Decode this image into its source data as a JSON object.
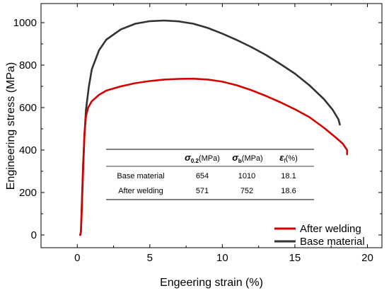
{
  "chart_data": {
    "type": "line",
    "xlabel": "Engeering strain (%)",
    "ylabel": "Engineering stress (MPa)",
    "xlim": [
      -2.5,
      21
    ],
    "ylim": [
      -60,
      1090
    ],
    "xticks": [
      0,
      5,
      10,
      15,
      20
    ],
    "yticks": [
      0,
      200,
      400,
      600,
      800,
      1000
    ],
    "xtick_labels": [
      "0",
      "5",
      "10",
      "15",
      "20"
    ],
    "ytick_labels": [
      "0",
      "200",
      "400",
      "600",
      "800",
      "1000"
    ],
    "legend_position": "bottom-right",
    "series": [
      {
        "name": "After welding",
        "color": "#d40000",
        "points": [
          [
            0.2,
            0
          ],
          [
            0.25,
            15
          ],
          [
            0.3,
            100
          ],
          [
            0.4,
            300
          ],
          [
            0.5,
            480
          ],
          [
            0.6,
            560
          ],
          [
            0.75,
            600
          ],
          [
            1,
            630
          ],
          [
            1.5,
            660
          ],
          [
            2,
            680
          ],
          [
            3,
            700
          ],
          [
            4,
            715
          ],
          [
            5,
            725
          ],
          [
            6,
            732
          ],
          [
            7,
            735
          ],
          [
            8,
            736
          ],
          [
            9,
            732
          ],
          [
            10,
            722
          ],
          [
            11,
            705
          ],
          [
            12,
            682
          ],
          [
            13,
            655
          ],
          [
            14,
            625
          ],
          [
            15,
            592
          ],
          [
            16,
            555
          ],
          [
            17,
            505
          ],
          [
            17.8,
            460
          ],
          [
            18.3,
            430
          ],
          [
            18.6,
            400
          ],
          [
            18.6,
            380
          ]
        ]
      },
      {
        "name": "Base material",
        "color": "#333333",
        "points": [
          [
            0.2,
            0
          ],
          [
            0.25,
            15
          ],
          [
            0.3,
            120
          ],
          [
            0.4,
            330
          ],
          [
            0.5,
            480
          ],
          [
            0.6,
            590
          ],
          [
            0.8,
            700
          ],
          [
            1,
            780
          ],
          [
            1.5,
            870
          ],
          [
            2,
            920
          ],
          [
            3,
            968
          ],
          [
            4,
            995
          ],
          [
            5,
            1007
          ],
          [
            6,
            1010
          ],
          [
            7,
            1006
          ],
          [
            8,
            995
          ],
          [
            9,
            975
          ],
          [
            10,
            948
          ],
          [
            11,
            918
          ],
          [
            12,
            885
          ],
          [
            13,
            848
          ],
          [
            14,
            805
          ],
          [
            15,
            760
          ],
          [
            16,
            705
          ],
          [
            17,
            640
          ],
          [
            17.6,
            590
          ],
          [
            18,
            545
          ],
          [
            18.1,
            520
          ]
        ]
      }
    ]
  },
  "table": {
    "headers": [
      {
        "sym": "σ",
        "sub": "0.2",
        "unit": "(MPa)"
      },
      {
        "sym": "σ",
        "sub": "b",
        "unit": "(MPa)"
      },
      {
        "sym": "ε",
        "sub": "f",
        "unit": "(%)"
      }
    ],
    "rows": [
      {
        "label": "Base material",
        "values": [
          "654",
          "1010",
          "18.1"
        ]
      },
      {
        "label": "After welding",
        "values": [
          "571",
          "752",
          "18.6"
        ]
      }
    ]
  }
}
